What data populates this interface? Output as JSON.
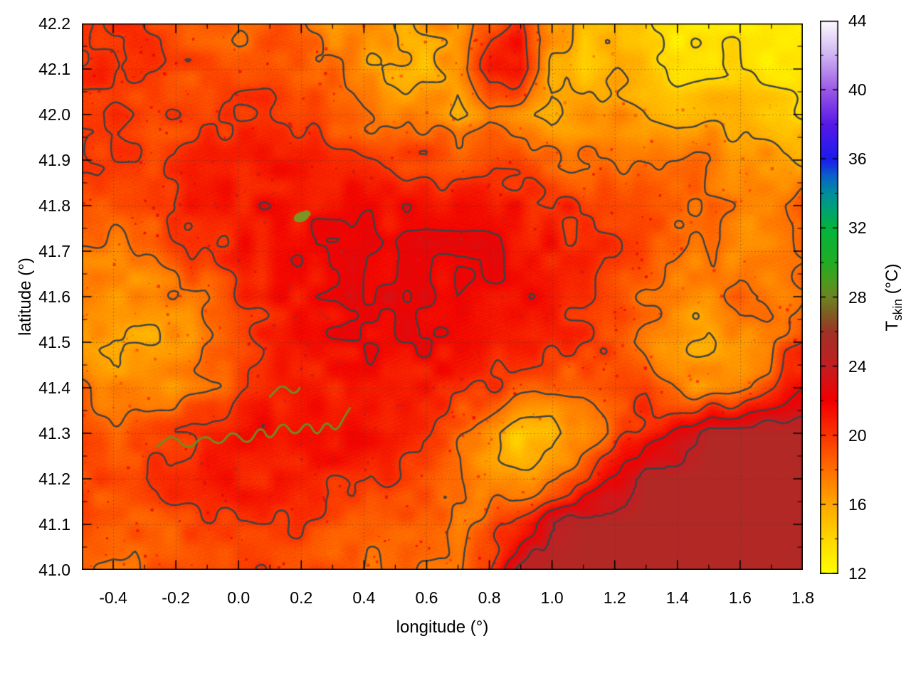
{
  "figure": {
    "xlabel": "longitude (°)",
    "ylabel": "latitude (°)",
    "colorbar_label_main": "T",
    "colorbar_label_sub": "skin",
    "colorbar_label_unit": " (°C)",
    "background": "#ffffff"
  },
  "chart_data": {
    "type": "heatmap",
    "title": "",
    "xlabel": "longitude (°)",
    "ylabel": "latitude (°)",
    "zlabel": "T_skin (°C)",
    "xlim": [
      -0.5,
      1.8
    ],
    "ylim": [
      41.0,
      42.2
    ],
    "zlim": [
      12,
      44
    ],
    "grid_on": true,
    "legend_position": "right-colorbar",
    "x_ticks": {
      "values": [
        -0.4,
        -0.2,
        0.0,
        0.2,
        0.4,
        0.6,
        0.8,
        1.0,
        1.2,
        1.4,
        1.6,
        1.8
      ],
      "labels": [
        "-0.4",
        "-0.2",
        "0.0",
        "0.2",
        "0.4",
        "0.6",
        "0.8",
        "1.0",
        "1.2",
        "1.4",
        "1.6",
        "1.8"
      ]
    },
    "y_ticks": {
      "values": [
        41.0,
        41.1,
        41.2,
        41.3,
        41.4,
        41.5,
        41.6,
        41.7,
        41.8,
        41.9,
        42.0,
        42.1,
        42.2
      ],
      "labels": [
        "41.0",
        "41.1",
        "41.2",
        "41.3",
        "41.4",
        "41.5",
        "41.6",
        "41.7",
        "41.8",
        "41.9",
        "42.0",
        "42.1",
        "42.2"
      ]
    },
    "colorbar_ticks": {
      "values": [
        12,
        16,
        20,
        24,
        28,
        32,
        36,
        40,
        44
      ],
      "labels": [
        "12",
        "16",
        "20",
        "24",
        "28",
        "32",
        "36",
        "40",
        "44"
      ]
    },
    "grid_lons": [
      -0.5,
      -0.4,
      -0.3,
      -0.2,
      -0.1,
      0.0,
      0.1,
      0.2,
      0.3,
      0.4,
      0.5,
      0.6,
      0.7,
      0.8,
      0.9,
      1.0,
      1.1,
      1.2,
      1.3,
      1.4,
      1.5,
      1.6,
      1.7,
      1.8
    ],
    "grid_lats": [
      42.2,
      42.1,
      42.0,
      41.9,
      41.8,
      41.7,
      41.6,
      41.5,
      41.4,
      41.3,
      41.2,
      41.1,
      41.0
    ],
    "values": [
      [
        20,
        20,
        20,
        19,
        18.5,
        18,
        19,
        18,
        17,
        17,
        16,
        17,
        17,
        19,
        21,
        17,
        15,
        16,
        14,
        13,
        13,
        13.5,
        13,
        13
      ],
      [
        20,
        20.5,
        20,
        19.5,
        19,
        19,
        19.5,
        19,
        18,
        16.5,
        16,
        15,
        17,
        21,
        21.5,
        16,
        14.5,
        16,
        15,
        13.5,
        14,
        14,
        13.5,
        13
      ],
      [
        20,
        20,
        19.5,
        19.5,
        19.5,
        20,
        20.5,
        20,
        18.5,
        17.5,
        17,
        18,
        16,
        18,
        16.5,
        15,
        16.5,
        17.5,
        16,
        15,
        15.5,
        16,
        15,
        14
      ],
      [
        20,
        19.5,
        19.5,
        20,
        20.5,
        21,
        21,
        21,
        20.5,
        20,
        19.5,
        19.5,
        19,
        19,
        19,
        18.5,
        18,
        18,
        17.5,
        17.5,
        18,
        17,
        16.5,
        16
      ],
      [
        19.5,
        19,
        19.5,
        20.5,
        21,
        21,
        21.5,
        21.5,
        21.5,
        21.5,
        21.5,
        21.5,
        21.5,
        21.5,
        21,
        20.5,
        20,
        19.5,
        19,
        18.5,
        18,
        17.5,
        17.5,
        18.5
      ],
      [
        18,
        17.5,
        18,
        19,
        20,
        21,
        21.5,
        21.5,
        22,
        22,
        21.5,
        22,
        22,
        22,
        21.5,
        21,
        20.5,
        20,
        19,
        18,
        17.5,
        17,
        17.5,
        18
      ],
      [
        17,
        16.5,
        17,
        17.5,
        18.5,
        20,
        21,
        21.5,
        22,
        22,
        22.5,
        22,
        22,
        21.5,
        21.5,
        21,
        20.5,
        19.5,
        18,
        17,
        16.5,
        18.5,
        17,
        17.5
      ],
      [
        17,
        16,
        16,
        16.5,
        17.5,
        19,
        20.5,
        21.5,
        21.5,
        22,
        22,
        22,
        21.5,
        21.5,
        21,
        20.5,
        20,
        19,
        17.5,
        16.5,
        16,
        16.5,
        18,
        20
      ],
      [
        18,
        17,
        16.5,
        17,
        18,
        19.5,
        20.5,
        21,
        21,
        20.5,
        21,
        21,
        20.5,
        20,
        19,
        18.5,
        18.5,
        19.5,
        20,
        17.5,
        16.5,
        17,
        19,
        22
      ],
      [
        19,
        18.5,
        19,
        20,
        20.5,
        21,
        21.5,
        21.5,
        21.5,
        21.5,
        21,
        20,
        18,
        16,
        14.5,
        15,
        17,
        19,
        21,
        22,
        25,
        25,
        25,
        25
      ],
      [
        19.5,
        19.5,
        20,
        20.5,
        20.5,
        21,
        21,
        20.5,
        20.5,
        20.5,
        20,
        19.5,
        18,
        16.5,
        16,
        17,
        19,
        22,
        25,
        25,
        25,
        25,
        25,
        25
      ],
      [
        19,
        18.5,
        18.5,
        19,
        19.5,
        20,
        20,
        19.5,
        19,
        19,
        18.5,
        18.5,
        18,
        19,
        21,
        24,
        25,
        25,
        25,
        25,
        25,
        25,
        25,
        25
      ],
      [
        18.5,
        18,
        18.5,
        19,
        19,
        19.5,
        19.5,
        19,
        18.5,
        18.5,
        18,
        18,
        18.5,
        20,
        24,
        25,
        25,
        25,
        25,
        25,
        25,
        25,
        25,
        25
      ]
    ],
    "contour_levels": [
      14,
      16,
      18,
      20,
      22,
      24
    ],
    "contour_color": "#3b4246",
    "sea_value": 25,
    "palette": [
      [
        12,
        "#ffff00"
      ],
      [
        14,
        "#ffd800"
      ],
      [
        16,
        "#ffa800"
      ],
      [
        18,
        "#ff7000"
      ],
      [
        20,
        "#fb3500"
      ],
      [
        22,
        "#f20000"
      ],
      [
        24,
        "#c41e22"
      ],
      [
        26,
        "#a03326"
      ],
      [
        27,
        "#7f5c23"
      ],
      [
        28,
        "#6f8422"
      ],
      [
        29,
        "#4a9c1e"
      ],
      [
        30,
        "#22ad25"
      ],
      [
        32,
        "#04b43c"
      ],
      [
        33,
        "#00a472"
      ],
      [
        34,
        "#008f9e"
      ],
      [
        35,
        "#0b63c9"
      ],
      [
        36,
        "#1b1bed"
      ],
      [
        38,
        "#5619e8"
      ],
      [
        40,
        "#9b59e6"
      ],
      [
        42,
        "#d0b3f2"
      ],
      [
        44,
        "#fdfbff"
      ]
    ],
    "rivers": [
      [
        [
          -0.26,
          41.27
        ],
        [
          -0.21,
          41.3
        ],
        [
          -0.16,
          41.26
        ],
        [
          -0.11,
          41.3
        ],
        [
          -0.06,
          41.27
        ],
        [
          -0.02,
          41.31
        ],
        [
          0.03,
          41.27
        ],
        [
          0.07,
          41.32
        ],
        [
          0.1,
          41.28
        ],
        [
          0.14,
          41.33
        ],
        [
          0.18,
          41.29
        ],
        [
          0.22,
          41.33
        ],
        [
          0.25,
          41.29
        ],
        [
          0.28,
          41.33
        ],
        [
          0.31,
          41.3
        ],
        [
          0.34,
          41.34
        ],
        [
          0.37,
          41.37
        ]
      ],
      [
        [
          0.1,
          41.38
        ],
        [
          0.14,
          41.41
        ],
        [
          0.18,
          41.38
        ],
        [
          0.21,
          41.42
        ]
      ]
    ],
    "river_color": "#6e8c26",
    "reservoir": {
      "lon": 0.2,
      "lat": 41.775,
      "rx": 11,
      "ry": 7,
      "color": "#7d9422"
    }
  }
}
